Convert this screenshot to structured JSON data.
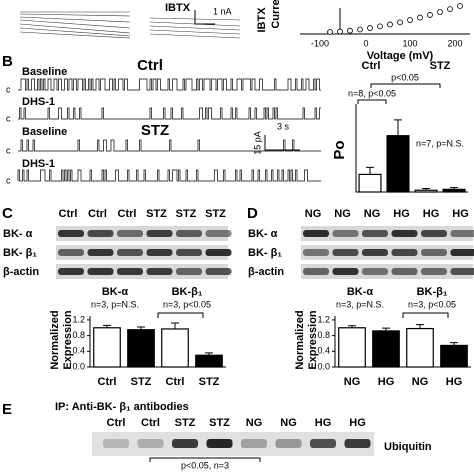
{
  "panel_a": {
    "ibtx": "IBTX",
    "scale": "1 nA",
    "y_label_1": "IBTX",
    "y_label_2": "Curre",
    "x_label": "Voltage (mV)",
    "x_ticks": [
      "-100",
      "0",
      "100",
      "200"
    ]
  },
  "panel_b": {
    "label": "B",
    "ctrl": "Ctrl",
    "stz": "STZ",
    "baseline_1": "Baseline",
    "dhs_1": "DHS-1",
    "baseline_2": "Baseline",
    "dhs_2": "DHS-1",
    "closed": "c",
    "time_scale": "3 s",
    "current_scale": "15 pA",
    "chart": {
      "title_ctrl": "Ctrl",
      "title_stz": "STZ",
      "p_between": "p<0.05",
      "n_ctrl": "n=8, p<0.05",
      "n_stz": "n=7, p=N.S.",
      "y_label": "Po",
      "values": [
        0.1,
        0.32,
        0.01,
        0.015
      ],
      "errors": [
        0.04,
        0.09,
        0.01,
        0.01
      ],
      "colors": [
        "#ffffff",
        "#000000",
        "#ffffff",
        "#000000"
      ],
      "ylim": [
        0,
        0.5
      ]
    }
  },
  "panel_c": {
    "label": "C",
    "lanes": [
      "Ctrl",
      "Ctrl",
      "Ctrl",
      "STZ",
      "STZ",
      "STZ"
    ],
    "rows": [
      "BK- α",
      "BK- β₁",
      "β-actin"
    ],
    "chart": {
      "groups": [
        "BK-α",
        "BK-β₁"
      ],
      "stats": [
        "n=3, p=N.S.",
        "n=3, p<0.05"
      ],
      "y_label": [
        "Normalized",
        "Expression"
      ],
      "categories": [
        "Ctrl",
        "STZ",
        "Ctrl",
        "STZ"
      ],
      "values": [
        1.0,
        0.95,
        0.97,
        0.3
      ],
      "errors": [
        0.06,
        0.07,
        0.15,
        0.06
      ],
      "colors": [
        "#ffffff",
        "#000000",
        "#ffffff",
        "#000000"
      ],
      "ylim": [
        0,
        1.3
      ],
      "yticks": [
        {
          "value": 0,
          "label": "0.0"
        },
        0.4,
        0.8,
        1.2
      ]
    }
  },
  "panel_d": {
    "label": "D",
    "lanes": [
      "NG",
      "NG",
      "NG",
      "HG",
      "HG",
      "HG"
    ],
    "rows": [
      "BK- α",
      "BK- β₁",
      "β-actin"
    ],
    "chart": {
      "groups": [
        "BK-α",
        "BK-β₁"
      ],
      "stats": [
        "n=3, p=N.S.",
        "n=3, p<0.05"
      ],
      "y_label": [
        "Normalized",
        "Expression"
      ],
      "categories": [
        "NG",
        "HG",
        "NG",
        "HG"
      ],
      "values": [
        1.0,
        0.92,
        0.98,
        0.55
      ],
      "errors": [
        0.05,
        0.07,
        0.1,
        0.07
      ],
      "colors": [
        "#ffffff",
        "#000000",
        "#ffffff",
        "#000000"
      ],
      "ylim": [
        0,
        1.3
      ],
      "yticks": [
        {
          "value": 0,
          "label": "0.0"
        },
        0.4,
        0.8,
        1.2
      ]
    }
  },
  "panel_e": {
    "label": "E",
    "title": "IP: Anti-BK- β₁ antibodies",
    "lanes": [
      "Ctrl",
      "Ctrl",
      "STZ",
      "STZ",
      "NG",
      "NG",
      "HG",
      "HG"
    ],
    "band": "Ubiquitin",
    "stat": "p<0.05, n=3"
  }
}
